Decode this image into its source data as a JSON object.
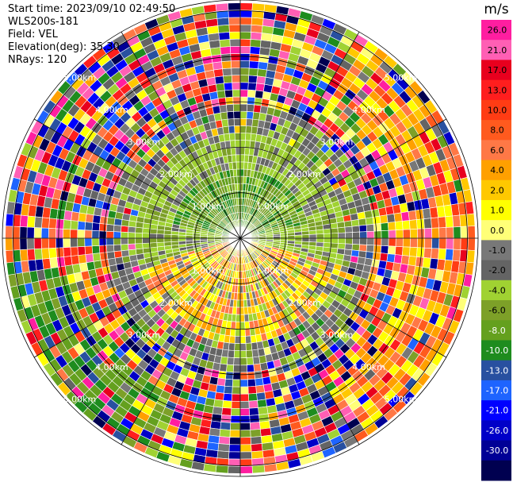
{
  "info": {
    "start_time": "Start time: 2023/09/10 02:49:50",
    "instrument": "WLS200s-181",
    "field": "Field: VEL",
    "elevation": "Elevation(deg): 35.30",
    "nrays": "NRays: 120"
  },
  "colorbar": {
    "unit": "m/s",
    "ticks": [
      "26.0",
      "21.0",
      "17.0",
      "13.0",
      "10.0",
      "8.0",
      "6.0",
      "4.0",
      "2.0",
      "1.0",
      "0.0",
      "-1.0",
      "-2.0",
      "-4.0",
      "-6.0",
      "-8.0",
      "-10.0",
      "-13.0",
      "-17.0",
      "-21.0",
      "-26.0",
      "-30.0"
    ],
    "colors": [
      "#ff1ea0",
      "#ff5fb4",
      "#e8001e",
      "#ff1e1e",
      "#ff3c14",
      "#ff5a1e",
      "#ff7846",
      "#ffa000",
      "#ffc800",
      "#ffff00",
      "#ffff78",
      "#787878",
      "#646464",
      "#a0d232",
      "#7da028",
      "#64a01e",
      "#1e8c1e",
      "#2850a0",
      "#1e64ff",
      "#0000ff",
      "#0000c8",
      "#000096",
      "#000050"
    ]
  },
  "chart_data": {
    "type": "heatmap",
    "projection": "polar PPI",
    "field": "VEL",
    "unit": "m/s",
    "nrays": 120,
    "elevation_deg": 35.3,
    "range_ring_labels": [
      "1.00km",
      "2.00km",
      "3.00km",
      "4.00km",
      "5.00km"
    ],
    "color_min": -30.0,
    "color_max": 26.0
  }
}
